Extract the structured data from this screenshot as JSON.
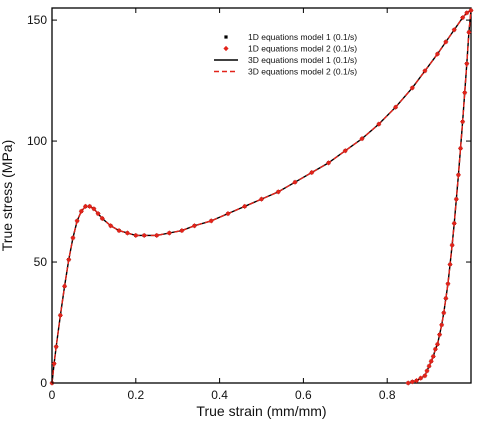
{
  "chart_data": {
    "type": "line",
    "title": "",
    "xlabel": "True strain (mm/mm)",
    "ylabel": "True stress (MPa)",
    "xlim": [
      0,
      1.0
    ],
    "ylim": [
      0,
      155
    ],
    "x_ticks": [
      0,
      0.2,
      0.4,
      0.6,
      0.8
    ],
    "x_tick_labels": [
      "0",
      "0.2",
      "0.4",
      "0.6",
      "0.8"
    ],
    "y_ticks": [
      0,
      50,
      100,
      150
    ],
    "y_tick_labels": [
      "0",
      "50",
      "100",
      "150"
    ],
    "grid": false,
    "legend_position": "top-right",
    "series": [
      {
        "name": "1D equations model 1 (0.1/s)",
        "style": "markers",
        "marker": "square",
        "color": "#000000",
        "x": [
          0,
          0.005,
          0.01,
          0.02,
          0.03,
          0.04,
          0.05,
          0.06,
          0.07,
          0.08,
          0.09,
          0.1,
          0.11,
          0.12,
          0.14,
          0.16,
          0.18,
          0.2,
          0.22,
          0.25,
          0.28,
          0.31,
          0.34,
          0.38,
          0.42,
          0.46,
          0.5,
          0.54,
          0.58,
          0.62,
          0.66,
          0.7,
          0.74,
          0.78,
          0.82,
          0.86,
          0.89,
          0.92,
          0.94,
          0.96,
          0.98,
          0.99,
          1.0,
          0.995,
          0.99,
          0.985,
          0.98,
          0.975,
          0.97,
          0.965,
          0.96,
          0.955,
          0.95,
          0.945,
          0.94,
          0.935,
          0.93,
          0.925,
          0.92,
          0.915,
          0.91,
          0.905,
          0.9,
          0.895,
          0.89,
          0.88,
          0.87,
          0.86,
          0.85
        ],
        "y": [
          0,
          8,
          15,
          28,
          40,
          51,
          60,
          67,
          71,
          73,
          73,
          72,
          70,
          68,
          65,
          63,
          62,
          61,
          61,
          61,
          62,
          63,
          65,
          67,
          70,
          73,
          76,
          79,
          83,
          87,
          91,
          96,
          101,
          107,
          114,
          122,
          129,
          136,
          141,
          146,
          151,
          153,
          154,
          145,
          132,
          120,
          108,
          97,
          86,
          76,
          66,
          57,
          49,
          41,
          35,
          29,
          24,
          20,
          16,
          14,
          11,
          9,
          7,
          5,
          3,
          2,
          1,
          0.5,
          0
        ]
      },
      {
        "name": "1D equations model 2 (0.1/s)",
        "style": "markers",
        "marker": "diamond",
        "color": "#e2231a",
        "x": [
          0,
          0.005,
          0.01,
          0.02,
          0.03,
          0.04,
          0.05,
          0.06,
          0.07,
          0.08,
          0.09,
          0.1,
          0.11,
          0.12,
          0.14,
          0.16,
          0.18,
          0.2,
          0.22,
          0.25,
          0.28,
          0.31,
          0.34,
          0.38,
          0.42,
          0.46,
          0.5,
          0.54,
          0.58,
          0.62,
          0.66,
          0.7,
          0.74,
          0.78,
          0.82,
          0.86,
          0.89,
          0.92,
          0.94,
          0.96,
          0.98,
          0.99,
          1.0,
          0.995,
          0.99,
          0.985,
          0.98,
          0.975,
          0.97,
          0.965,
          0.96,
          0.955,
          0.95,
          0.945,
          0.94,
          0.935,
          0.93,
          0.925,
          0.92,
          0.915,
          0.91,
          0.905,
          0.9,
          0.895,
          0.89,
          0.88,
          0.87,
          0.86,
          0.85
        ],
        "y": [
          0,
          8,
          15,
          28,
          40,
          51,
          60,
          67,
          71,
          73,
          73,
          72,
          70,
          68,
          65,
          63,
          62,
          61,
          61,
          61,
          62,
          63,
          65,
          67,
          70,
          73,
          76,
          79,
          83,
          87,
          91,
          96,
          101,
          107,
          114,
          122,
          129,
          136,
          141,
          146,
          151,
          153,
          154,
          145,
          132,
          120,
          108,
          97,
          86,
          76,
          66,
          57,
          49,
          41,
          35,
          29,
          24,
          20,
          16,
          14,
          11,
          9,
          7,
          5,
          3,
          2,
          1,
          0.5,
          0
        ]
      },
      {
        "name": "3D equations model 1 (0.1/s)",
        "style": "solid",
        "color": "#000000",
        "x": [
          0,
          0.005,
          0.01,
          0.02,
          0.03,
          0.04,
          0.05,
          0.06,
          0.07,
          0.08,
          0.09,
          0.1,
          0.11,
          0.12,
          0.14,
          0.16,
          0.18,
          0.2,
          0.22,
          0.25,
          0.28,
          0.31,
          0.34,
          0.38,
          0.42,
          0.46,
          0.5,
          0.54,
          0.58,
          0.62,
          0.66,
          0.7,
          0.74,
          0.78,
          0.82,
          0.86,
          0.89,
          0.92,
          0.94,
          0.96,
          0.98,
          0.99,
          1.0,
          0.995,
          0.99,
          0.985,
          0.98,
          0.975,
          0.97,
          0.965,
          0.96,
          0.955,
          0.95,
          0.945,
          0.94,
          0.935,
          0.93,
          0.925,
          0.92,
          0.915,
          0.91,
          0.905,
          0.9,
          0.895,
          0.89,
          0.88,
          0.87,
          0.86,
          0.85
        ],
        "y": [
          0,
          8,
          15,
          28,
          40,
          51,
          60,
          67,
          71,
          73,
          73,
          72,
          70,
          68,
          65,
          63,
          62,
          61,
          61,
          61,
          62,
          63,
          65,
          67,
          70,
          73,
          76,
          79,
          83,
          87,
          91,
          96,
          101,
          107,
          114,
          122,
          129,
          136,
          141,
          146,
          151,
          153,
          154,
          145,
          132,
          120,
          108,
          97,
          86,
          76,
          66,
          57,
          49,
          41,
          35,
          29,
          24,
          20,
          16,
          14,
          11,
          9,
          7,
          5,
          3,
          2,
          1,
          0.5,
          0
        ]
      },
      {
        "name": "3D equations model 2 (0.1/s)",
        "style": "dashed",
        "color": "#e2231a",
        "x": [
          0,
          0.005,
          0.01,
          0.02,
          0.03,
          0.04,
          0.05,
          0.06,
          0.07,
          0.08,
          0.09,
          0.1,
          0.11,
          0.12,
          0.14,
          0.16,
          0.18,
          0.2,
          0.22,
          0.25,
          0.28,
          0.31,
          0.34,
          0.38,
          0.42,
          0.46,
          0.5,
          0.54,
          0.58,
          0.62,
          0.66,
          0.7,
          0.74,
          0.78,
          0.82,
          0.86,
          0.89,
          0.92,
          0.94,
          0.96,
          0.98,
          0.99,
          1.0,
          0.995,
          0.99,
          0.985,
          0.98,
          0.975,
          0.97,
          0.965,
          0.96,
          0.955,
          0.95,
          0.945,
          0.94,
          0.935,
          0.93,
          0.925,
          0.92,
          0.915,
          0.91,
          0.905,
          0.9,
          0.895,
          0.89,
          0.88,
          0.87,
          0.86,
          0.85
        ],
        "y": [
          0,
          8,
          15,
          28,
          40,
          51,
          60,
          67,
          71,
          73,
          73,
          72,
          70,
          68,
          65,
          63,
          62,
          61,
          61,
          61,
          62,
          63,
          65,
          67,
          70,
          73,
          76,
          79,
          83,
          87,
          91,
          96,
          101,
          107,
          114,
          122,
          129,
          136,
          141,
          146,
          151,
          153,
          154,
          145,
          132,
          120,
          108,
          97,
          86,
          76,
          66,
          57,
          49,
          41,
          35,
          29,
          24,
          20,
          16,
          14,
          11,
          9,
          7,
          5,
          3,
          2,
          1,
          0.5,
          0
        ]
      }
    ]
  }
}
